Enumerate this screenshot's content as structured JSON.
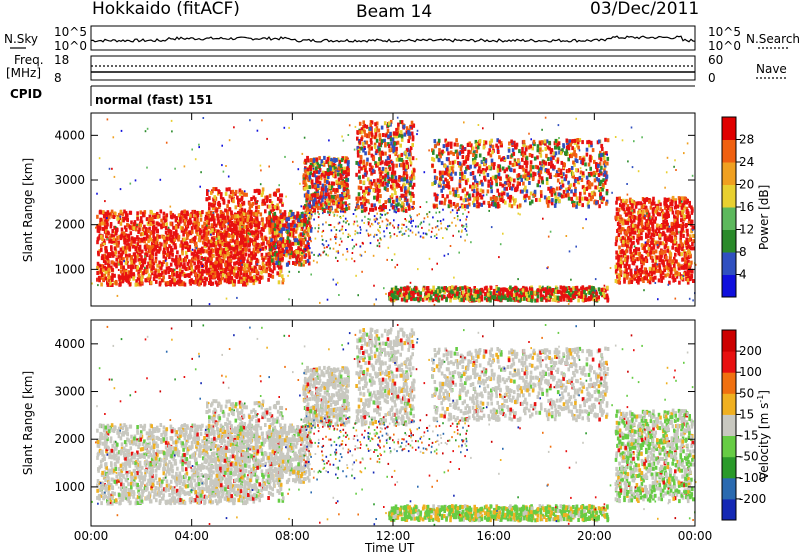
{
  "header": {
    "station": "Hokkaido (fitACF)",
    "beam": "Beam 14",
    "date": "03/Dec/2011"
  },
  "strip_labels": {
    "nsky": "N.Sky",
    "nsky_top": "10^5",
    "nsky_bottom": "10^0",
    "nsearch": "N.Search",
    "nsearch_top": "10^5",
    "nsearch_bottom": "10^0",
    "freq": "Freq.",
    "freq_unit": "[MHz]",
    "freq_top": "18",
    "freq_bottom": "8",
    "nave": "Nave",
    "nave_top": "60",
    "nave_bottom": "0",
    "cpid": "CPID",
    "cpid_mode": "normal (fast) 151"
  },
  "chart_data": [
    {
      "type": "heatmap",
      "name": "power",
      "ylabel": "Slant Range [km]",
      "yticks": [
        1000,
        2000,
        3000,
        4000
      ],
      "ylim": [
        180,
        4500
      ],
      "xlim_hours": [
        0,
        24
      ],
      "xticks": [
        "00:00",
        "04:00",
        "08:00",
        "12:00",
        "16:00",
        "20:00",
        "00:00"
      ],
      "xlabel": "Time UT",
      "colorbar": {
        "label": "Power [dB]",
        "ticks": [
          "4",
          "8",
          "12",
          "16",
          "20",
          "24",
          "28"
        ],
        "colors": [
          "#1010dd",
          "#3050c0",
          "#2a8a2a",
          "#5cb85c",
          "#e8d030",
          "#f0a020",
          "#f06010",
          "#e00000"
        ]
      }
    },
    {
      "type": "heatmap",
      "name": "velocity",
      "ylabel": "Slant Range [km]",
      "yticks": [
        1000,
        2000,
        3000,
        4000
      ],
      "ylim": [
        180,
        4500
      ],
      "xlim_hours": [
        0,
        24
      ],
      "xticks": [
        "00:00",
        "04:00",
        "08:00",
        "12:00",
        "16:00",
        "20:00",
        "00:00"
      ],
      "xlabel": "Time UT",
      "colorbar": {
        "label": "Velocity [m s",
        "label_sup": "-1",
        "label_end": "]",
        "ticks": [
          "200",
          "100",
          "50",
          "15",
          "-15",
          "-50",
          "-100",
          "-200"
        ],
        "colors": [
          "#1428b4",
          "#2a6ab0",
          "#2a9a2a",
          "#66cc44",
          "#c8c8c0",
          "#f0b020",
          "#f07010",
          "#e81010",
          "#cc0000"
        ]
      }
    }
  ]
}
